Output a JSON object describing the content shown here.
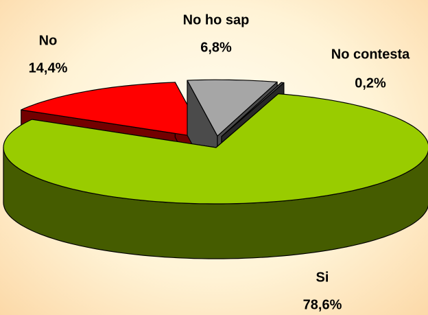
{
  "chart_data": {
    "type": "pie",
    "categories": [
      "No",
      "No ho sap",
      "No contesta",
      "Si"
    ],
    "values": [
      14.4,
      6.8,
      0.2,
      78.6
    ],
    "value_labels": [
      "14,4%",
      "6,8%",
      "0,2%",
      "78,6%"
    ],
    "colors": [
      "#ff0000",
      "#a6a6a6",
      "#595959",
      "#99cc00"
    ]
  }
}
